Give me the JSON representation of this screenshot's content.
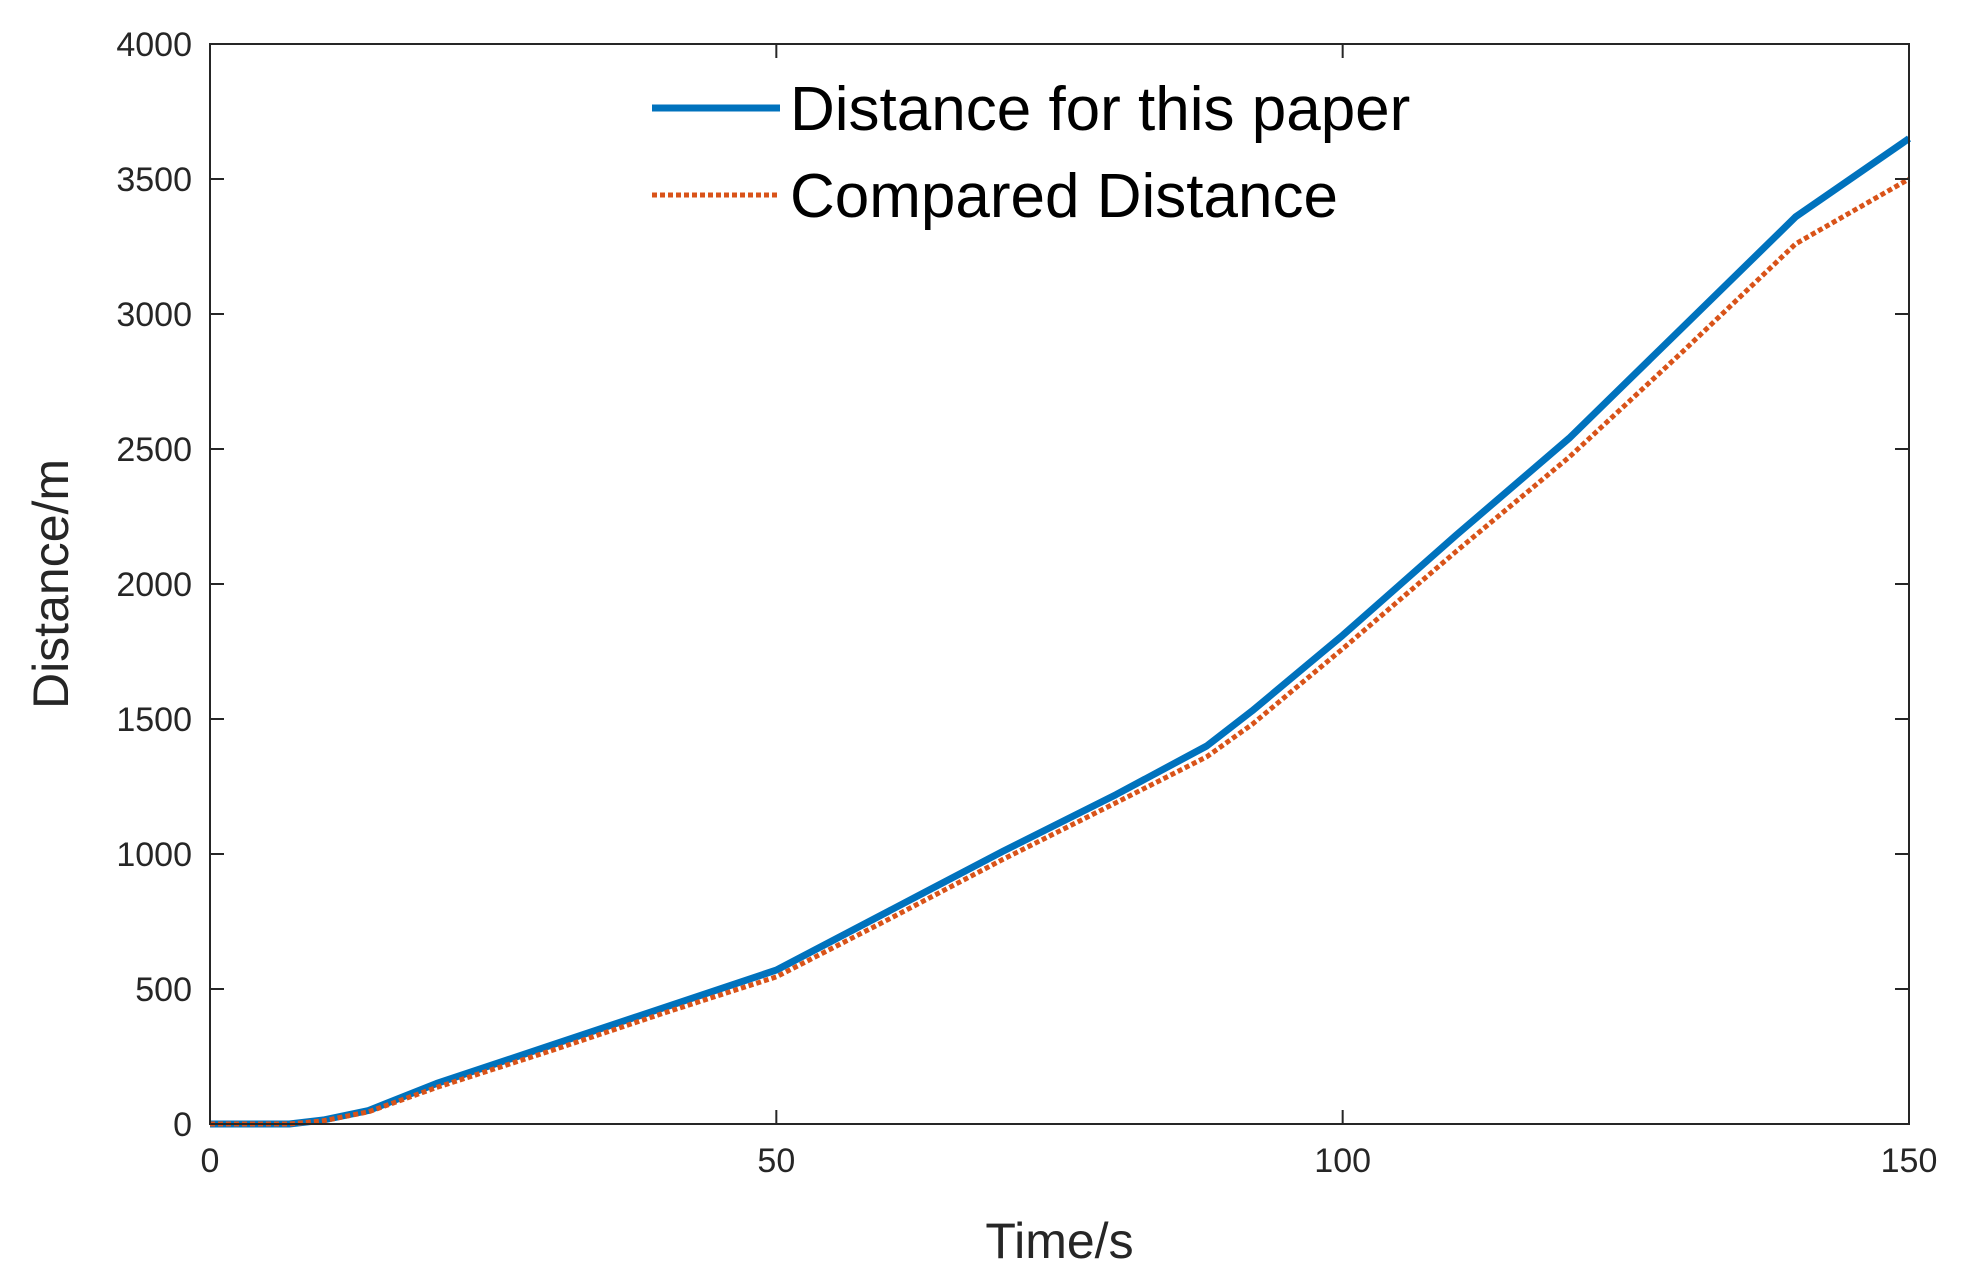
{
  "chart_data": {
    "type": "line",
    "title": "",
    "xlabel": "Time/s",
    "ylabel": "Distance/m",
    "xlim": [
      0,
      150
    ],
    "ylim": [
      0,
      4000
    ],
    "xticks": [
      0,
      50,
      100,
      150
    ],
    "yticks": [
      0,
      500,
      1000,
      1500,
      2000,
      2500,
      3000,
      3500,
      4000
    ],
    "grid": false,
    "legend_position": "top-center",
    "series": [
      {
        "name": "Distance for this paper",
        "color": "#0072BD",
        "style": "solid",
        "x": [
          0,
          7,
          10,
          14,
          20,
          30,
          40,
          50,
          60,
          70,
          80,
          88,
          92,
          100,
          110,
          120,
          130,
          140,
          150
        ],
        "y": [
          0,
          0,
          15,
          50,
          150,
          290,
          430,
          570,
          790,
          1010,
          1220,
          1400,
          1530,
          1810,
          2180,
          2540,
          2950,
          3360,
          3650
        ]
      },
      {
        "name": "Compared Distance",
        "color": "#D95319",
        "style": "dotted",
        "x": [
          0,
          7,
          10,
          14,
          20,
          30,
          40,
          50,
          60,
          70,
          80,
          88,
          92,
          100,
          110,
          120,
          130,
          140,
          150
        ],
        "y": [
          0,
          0,
          12,
          45,
          135,
          270,
          410,
          545,
          760,
          980,
          1190,
          1360,
          1480,
          1760,
          2120,
          2470,
          2860,
          3260,
          3500
        ]
      }
    ]
  }
}
